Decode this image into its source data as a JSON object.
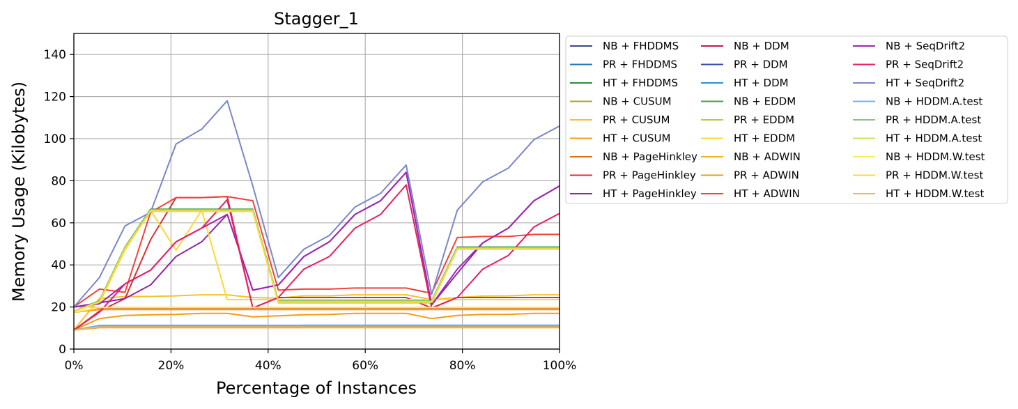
{
  "chart_data": {
    "type": "line",
    "title": "Stagger_1",
    "xlabel": "Percentage of Instances",
    "ylabel": "Memory Usage (Kilobytes)",
    "xlim": [
      0,
      100
    ],
    "ylim": [
      0,
      150
    ],
    "xticks": [
      0,
      20,
      40,
      60,
      80,
      100
    ],
    "xtick_labels": [
      "0%",
      "20%",
      "40%",
      "60%",
      "80%",
      "100%"
    ],
    "yticks": [
      0,
      20,
      40,
      60,
      80,
      100,
      120,
      140
    ],
    "ytick_labels": [
      "0",
      "20",
      "40",
      "60",
      "80",
      "100",
      "120",
      "140"
    ],
    "grid": true,
    "legend_position": "outside-right",
    "x": [
      0,
      5.26,
      10.53,
      15.79,
      21.05,
      26.32,
      31.58,
      36.84,
      42.11,
      47.37,
      52.63,
      57.89,
      63.16,
      68.42,
      73.68,
      78.95,
      84.21,
      89.47,
      94.74,
      100
    ],
    "series": [
      {
        "name": "NB + FHDDMS",
        "color": "#3b4a8c",
        "values": [
          17.5,
          19.5,
          19.5,
          19.5,
          19.5,
          19.5,
          19.5,
          19.5,
          19.5,
          19.5,
          19.5,
          19.5,
          19.5,
          19.5,
          19.5,
          19.5,
          19.5,
          19.5,
          19.5,
          19.5
        ]
      },
      {
        "name": "PR + FHDDMS",
        "color": "#1f77b4",
        "values": [
          9,
          11.2,
          11.2,
          11.2,
          11.2,
          11.2,
          11.2,
          11.2,
          11.2,
          11.3,
          11.3,
          11.3,
          11.3,
          11.3,
          11.3,
          11.3,
          11.3,
          11.3,
          11.3,
          11.3
        ]
      },
      {
        "name": "HT + FHDDMS",
        "color": "#2e8b3a",
        "values": [
          18,
          22.5,
          48,
          66,
          66,
          66,
          66,
          66,
          22.5,
          22.5,
          22.5,
          22.5,
          22.5,
          22.5,
          22.5,
          48,
          48,
          48,
          48,
          48
        ]
      },
      {
        "name": "NB + CUSUM",
        "color": "#a9a52a",
        "values": [
          17.5,
          19.3,
          19.3,
          19.3,
          19.3,
          19.3,
          19.3,
          19.3,
          19.3,
          19.3,
          19.3,
          19.3,
          19.3,
          19.3,
          19.3,
          19.3,
          19.3,
          19.3,
          19.3,
          19.3
        ]
      },
      {
        "name": "PR + CUSUM",
        "color": "#f6c22c",
        "values": [
          9,
          24,
          25,
          25,
          25.3,
          25.8,
          25.8,
          24.5,
          24.2,
          25.3,
          25.3,
          25.8,
          25.8,
          25.8,
          23.5,
          24.5,
          25.2,
          25.3,
          25.8,
          25.8
        ]
      },
      {
        "name": "HT + CUSUM",
        "color": "#f39c12",
        "values": [
          9,
          14.5,
          16,
          16.3,
          16.5,
          17,
          17,
          15.3,
          15.8,
          16.3,
          16.5,
          17,
          17,
          17,
          14.5,
          16,
          16.5,
          16.5,
          17,
          17
        ]
      },
      {
        "name": "NB + PageHinkley",
        "color": "#e06c1a",
        "values": [
          17.5,
          18.8,
          18.8,
          18.8,
          18.8,
          18.8,
          18.8,
          18.8,
          18.8,
          18.8,
          18.8,
          18.8,
          18.8,
          18.8,
          18.8,
          18.8,
          18.8,
          18.8,
          18.8,
          18.8
        ]
      },
      {
        "name": "PR + PageHinkley",
        "color": "#d62f36",
        "values": [
          9,
          18,
          24,
          52,
          72,
          72,
          72.5,
          19.5,
          24.5,
          24.5,
          24.5,
          24.5,
          24.5,
          24.5,
          19.5,
          24.5,
          24.5,
          24.5,
          24.5,
          24.5
        ]
      },
      {
        "name": "HT + PageHinkley",
        "color": "#8e24aa",
        "values": [
          20,
          22,
          24,
          30.5,
          44,
          51,
          64,
          28,
          30.5,
          44,
          51,
          64,
          70.5,
          84,
          21,
          36,
          50.5,
          57.5,
          70.5,
          77.5
        ]
      },
      {
        "name": "NB + DDM",
        "color": "#c2185b",
        "values": [
          17.5,
          19.5,
          19.5,
          19.5,
          19.5,
          19.5,
          19.5,
          19.5,
          19.5,
          19.5,
          19.5,
          19.5,
          19.5,
          19.5,
          19.5,
          19.5,
          19.5,
          19.5,
          19.5,
          19.5
        ]
      },
      {
        "name": "PR + DDM",
        "color": "#3949ab",
        "values": [
          9,
          11,
          11,
          11,
          11,
          11,
          11,
          11,
          11,
          11,
          11,
          11,
          11,
          11,
          11,
          11,
          11,
          11,
          11,
          11
        ]
      },
      {
        "name": "HT + DDM",
        "color": "#2b8fd6",
        "values": [
          9,
          10.8,
          10.8,
          10.8,
          10.8,
          10.8,
          10.8,
          10.8,
          10.8,
          10.8,
          10.8,
          10.8,
          10.8,
          10.8,
          10.8,
          10.8,
          10.8,
          10.8,
          10.8,
          10.8
        ]
      },
      {
        "name": "NB + EDDM",
        "color": "#43a047",
        "values": [
          18,
          23,
          48.5,
          66.5,
          66.5,
          66.5,
          66.5,
          66.5,
          23,
          23,
          23,
          23,
          23,
          23,
          23,
          48.5,
          48.5,
          48.5,
          48.5,
          48.5
        ]
      },
      {
        "name": "PR + EDDM",
        "color": "#c0ca33",
        "values": [
          18,
          22,
          47.5,
          65.5,
          65.5,
          65.5,
          65.5,
          65.5,
          22,
          22,
          22,
          22,
          22,
          22,
          22,
          47.5,
          47.5,
          47.5,
          47.5,
          47.5
        ]
      },
      {
        "name": "HT + EDDM",
        "color": "#fdd835",
        "values": [
          18,
          22,
          47,
          66,
          47,
          66,
          23.5,
          23.5,
          23.5,
          23.5,
          23.5,
          23.5,
          23.5,
          23.5,
          23.5,
          23.5,
          23.5,
          23.5,
          23.5,
          23.5
        ]
      },
      {
        "name": "NB + ADWIN",
        "color": "#f0b41c",
        "values": [
          17.5,
          19,
          19,
          19,
          19,
          19,
          19,
          19,
          19,
          19,
          19,
          19,
          19,
          19,
          19,
          19,
          19,
          19,
          19,
          19
        ]
      },
      {
        "name": "PR + ADWIN",
        "color": "#f29a1a",
        "values": [
          9,
          10.2,
          10.2,
          10.2,
          10.2,
          10.2,
          10.2,
          10.2,
          10.2,
          10.2,
          10.2,
          10.2,
          10.2,
          10.2,
          10.2,
          10.2,
          10.2,
          10.2,
          10.2,
          10.2
        ]
      },
      {
        "name": "HT + ADWIN",
        "color": "#f44336",
        "values": [
          20,
          28.5,
          27,
          65,
          72,
          72,
          72.5,
          70.5,
          28,
          28.5,
          28.5,
          29,
          29,
          29,
          26.5,
          53,
          53.5,
          53.5,
          54.5,
          54.5
        ]
      },
      {
        "name": "NB + SeqDrift2",
        "color": "#9c27b0",
        "values": [
          20,
          21.5,
          31,
          37.5,
          51,
          57.5,
          64,
          28,
          30.5,
          44,
          51,
          64,
          70.5,
          84,
          21,
          38,
          50.5,
          57.5,
          70.5,
          77.5
        ]
      },
      {
        "name": "PR + SeqDrift2",
        "color": "#e91e63",
        "values": [
          9,
          17.5,
          31,
          37.5,
          51,
          57.5,
          71,
          19.5,
          24.5,
          38,
          44,
          57.5,
          64,
          78,
          19.5,
          24.5,
          38,
          44.5,
          58,
          64.5
        ]
      },
      {
        "name": "HT + SeqDrift2",
        "color": "#7986cb",
        "values": [
          20,
          34,
          58.5,
          65,
          97.5,
          104.5,
          118,
          77.5,
          34,
          47.5,
          54,
          67.5,
          74,
          87.5,
          26,
          66,
          79.5,
          86,
          99.5,
          106
        ]
      },
      {
        "name": "NB + HDDM.A.test",
        "color": "#64b5f6",
        "values": [
          9,
          11.3,
          11.3,
          11.3,
          11.3,
          11.3,
          11.3,
          11.3,
          11.3,
          11.3,
          11.3,
          11.3,
          11.3,
          11.3,
          11.3,
          11.3,
          11.3,
          11.3,
          11.3,
          11.3
        ]
      },
      {
        "name": "PR + HDDM.A.test",
        "color": "#81c784",
        "values": [
          18,
          22.8,
          48.2,
          66.2,
          66.2,
          66.2,
          66.2,
          66.2,
          22.8,
          22.8,
          22.8,
          22.8,
          22.8,
          22.8,
          22.8,
          48.2,
          48.2,
          48.2,
          48.2,
          48.2
        ]
      },
      {
        "name": "HT + HDDM.A.test",
        "color": "#d4e157",
        "values": [
          18,
          22.3,
          47.8,
          65.8,
          65.8,
          65.8,
          65.8,
          65.8,
          22.3,
          22.3,
          22.3,
          22.3,
          22.3,
          22.3,
          22.3,
          47.8,
          47.8,
          47.8,
          47.8,
          47.8
        ]
      },
      {
        "name": "NB + HDDM.W.test",
        "color": "#ffee58",
        "values": [
          17.5,
          19.8,
          19.8,
          19.8,
          19.8,
          19.8,
          19.8,
          19.8,
          19.8,
          19.8,
          19.8,
          19.8,
          19.8,
          19.8,
          19.8,
          19.8,
          19.8,
          19.8,
          19.8,
          19.8
        ]
      },
      {
        "name": "PR + HDDM.W.test",
        "color": "#fdd835",
        "values": [
          18,
          22.5,
          47.5,
          65.5,
          65.5,
          65.5,
          65.5,
          65.5,
          22.5,
          22.5,
          22.5,
          22.5,
          22.5,
          22.5,
          22.5,
          47.5,
          47.5,
          47.5,
          47.5,
          47.5
        ]
      },
      {
        "name": "HT + HDDM.W.test",
        "color": "#ffb74d",
        "values": [
          9,
          10.5,
          10.5,
          10.5,
          10.5,
          10.5,
          10.5,
          10.5,
          10.5,
          10.5,
          10.5,
          10.5,
          10.5,
          10.5,
          10.5,
          10.5,
          10.5,
          10.5,
          10.5,
          10.5
        ]
      }
    ]
  }
}
